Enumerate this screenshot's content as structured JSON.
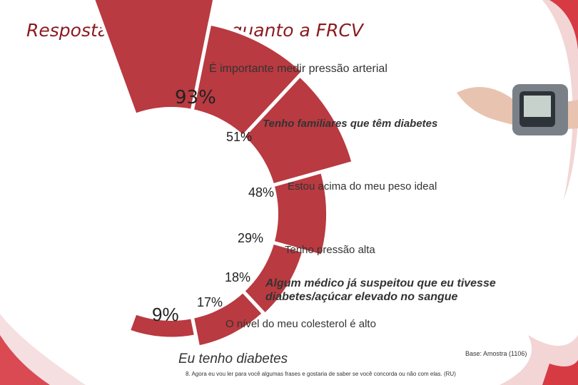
{
  "page_title": "Respostas da amostra quanto a FRCV",
  "footer": {
    "base": "Base: Amostra (1106)",
    "question": "8. Agora eu vou ler para você algumas frases e gostaria de saber se você concorda ou não com elas. (RU)"
  },
  "colors": {
    "accent": "#b93a40",
    "title": "#8b1a1f"
  },
  "chart_data": {
    "type": "radial-bar",
    "series": [
      {
        "label": "É importante medir pressão arterial",
        "value": 93,
        "display": "93%"
      },
      {
        "label": "Tenho familiares que têm diabetes",
        "value": 51,
        "display": "51%"
      },
      {
        "label": "Estou acima do meu peso ideal",
        "value": 48,
        "display": "48%"
      },
      {
        "label": "Tenho pressão alta",
        "value": 29,
        "display": "29%"
      },
      {
        "label": "Algum médico já suspeitou que eu tivesse diabetes/açúcar elevado no sangue",
        "value": 18,
        "display": "18%"
      },
      {
        "label": "O nível do meu colesterol é alto",
        "value": 17,
        "display": "17%"
      },
      {
        "label": "Eu tenho diabetes",
        "value": 9,
        "display": "9%"
      }
    ]
  }
}
